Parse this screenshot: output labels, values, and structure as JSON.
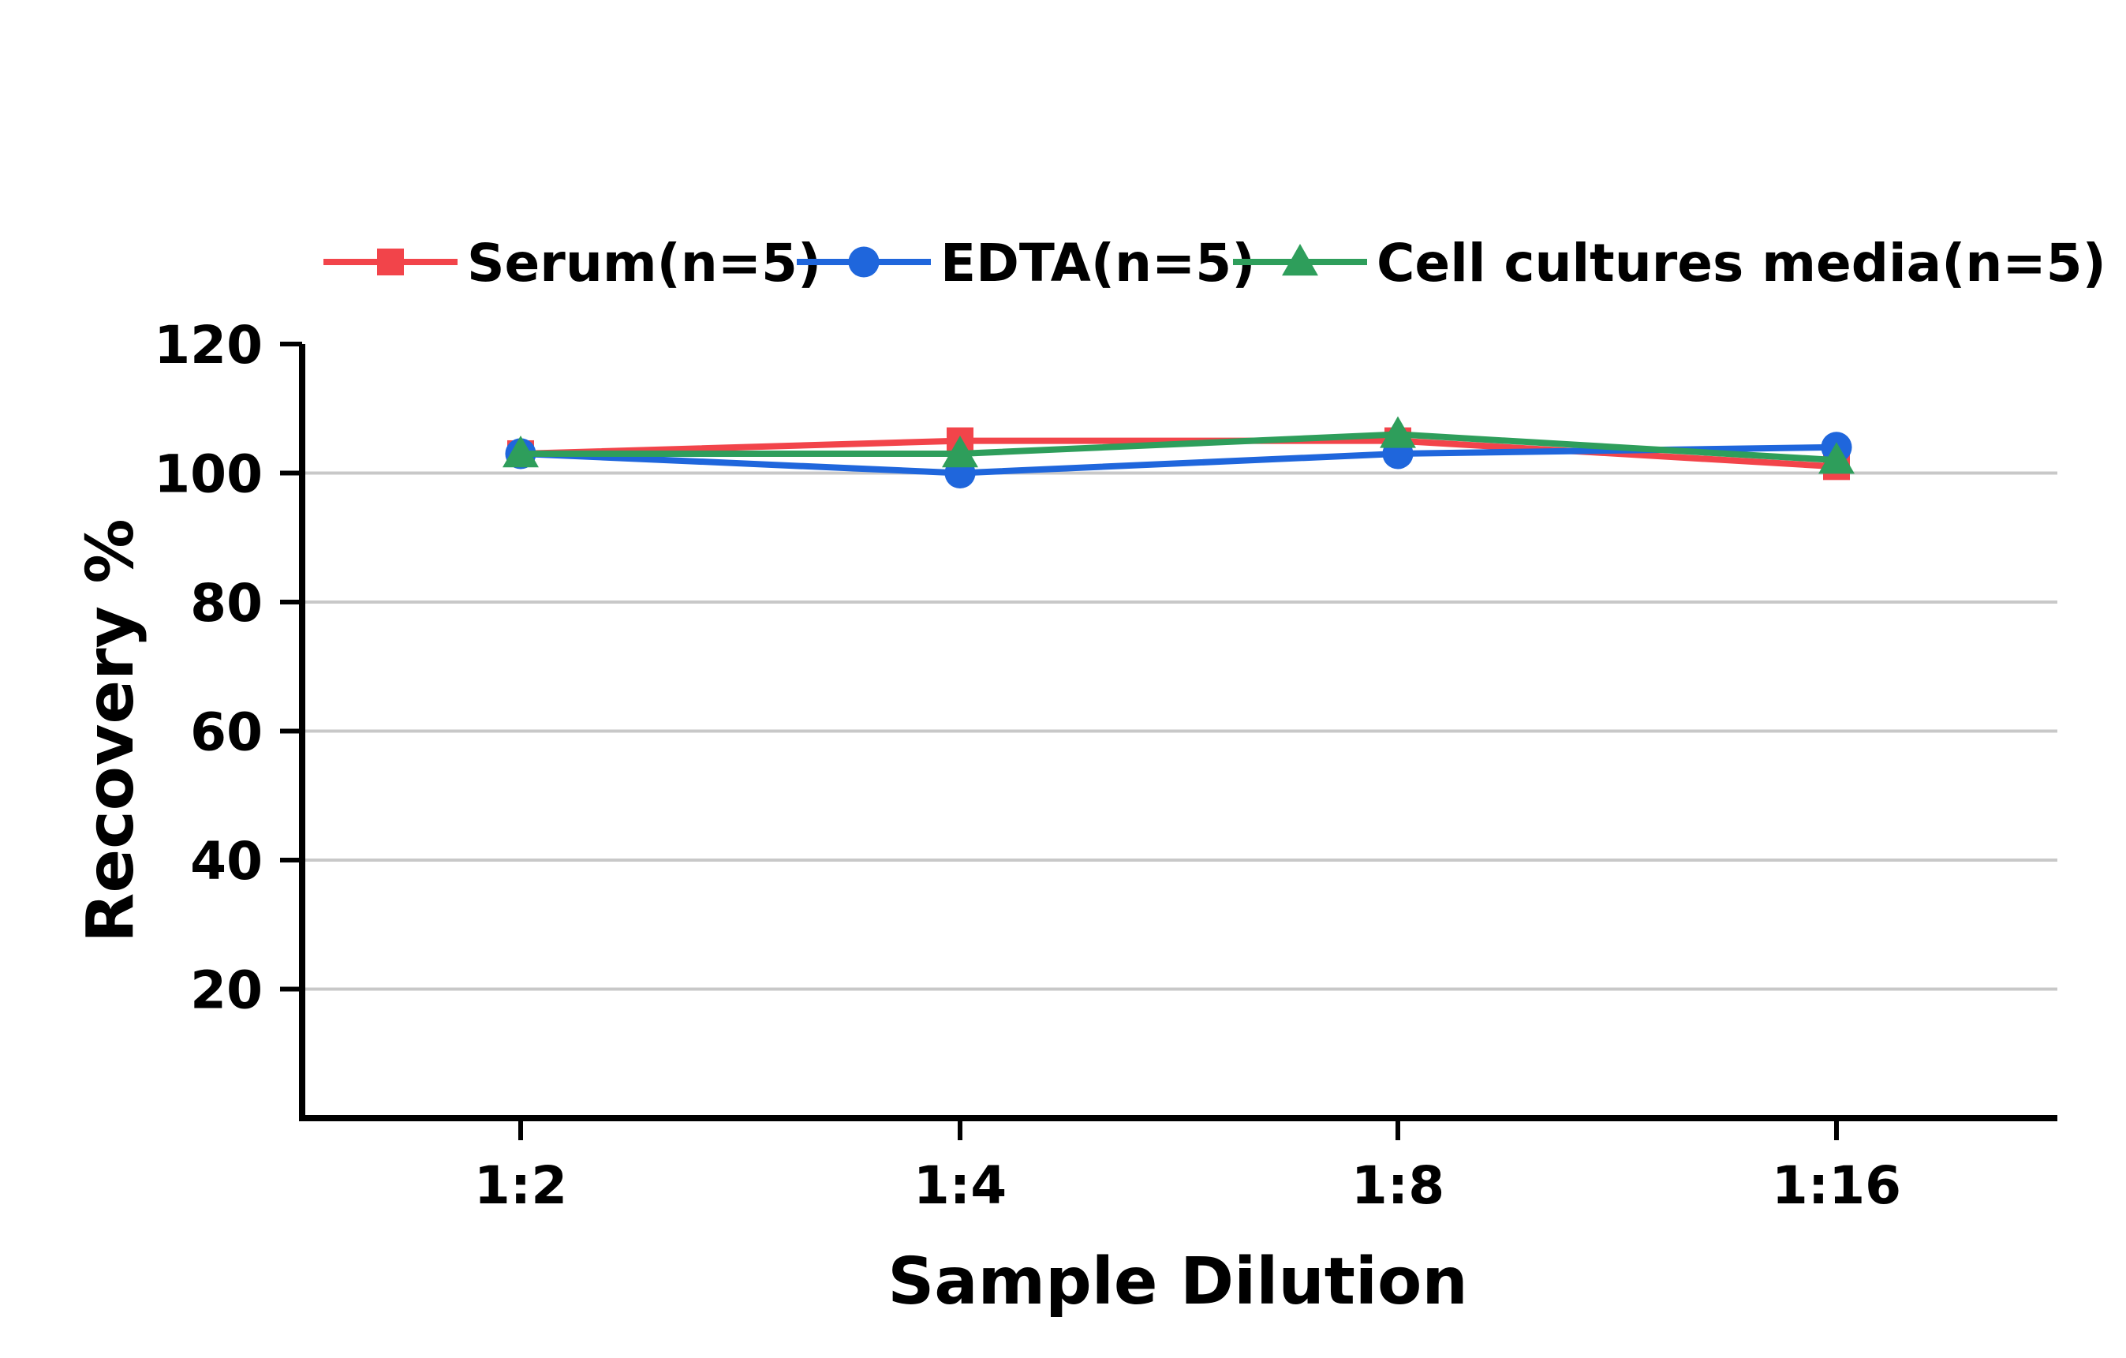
{
  "chart_data": {
    "type": "line",
    "categories": [
      "1:2",
      "1:4",
      "1:8",
      "1:16"
    ],
    "xlabel": "Sample Dilution",
    "ylabel": "Recovery %",
    "ylim": [
      0,
      120
    ],
    "yticks": [
      20,
      40,
      60,
      80,
      100,
      120
    ],
    "grid": true,
    "legend_position": "top",
    "series": [
      {
        "name": "Serum(n=5)",
        "color": "#f2444a",
        "marker": "square",
        "values": [
          103,
          105,
          105,
          101
        ]
      },
      {
        "name": "EDTA(n=5)",
        "color": "#1f66dc",
        "marker": "circle",
        "values": [
          103,
          100,
          103,
          104
        ]
      },
      {
        "name": "Cell cultures media(n=5)",
        "color": "#2e9e5b",
        "marker": "triangle",
        "values": [
          103,
          103,
          106,
          102
        ]
      }
    ]
  }
}
